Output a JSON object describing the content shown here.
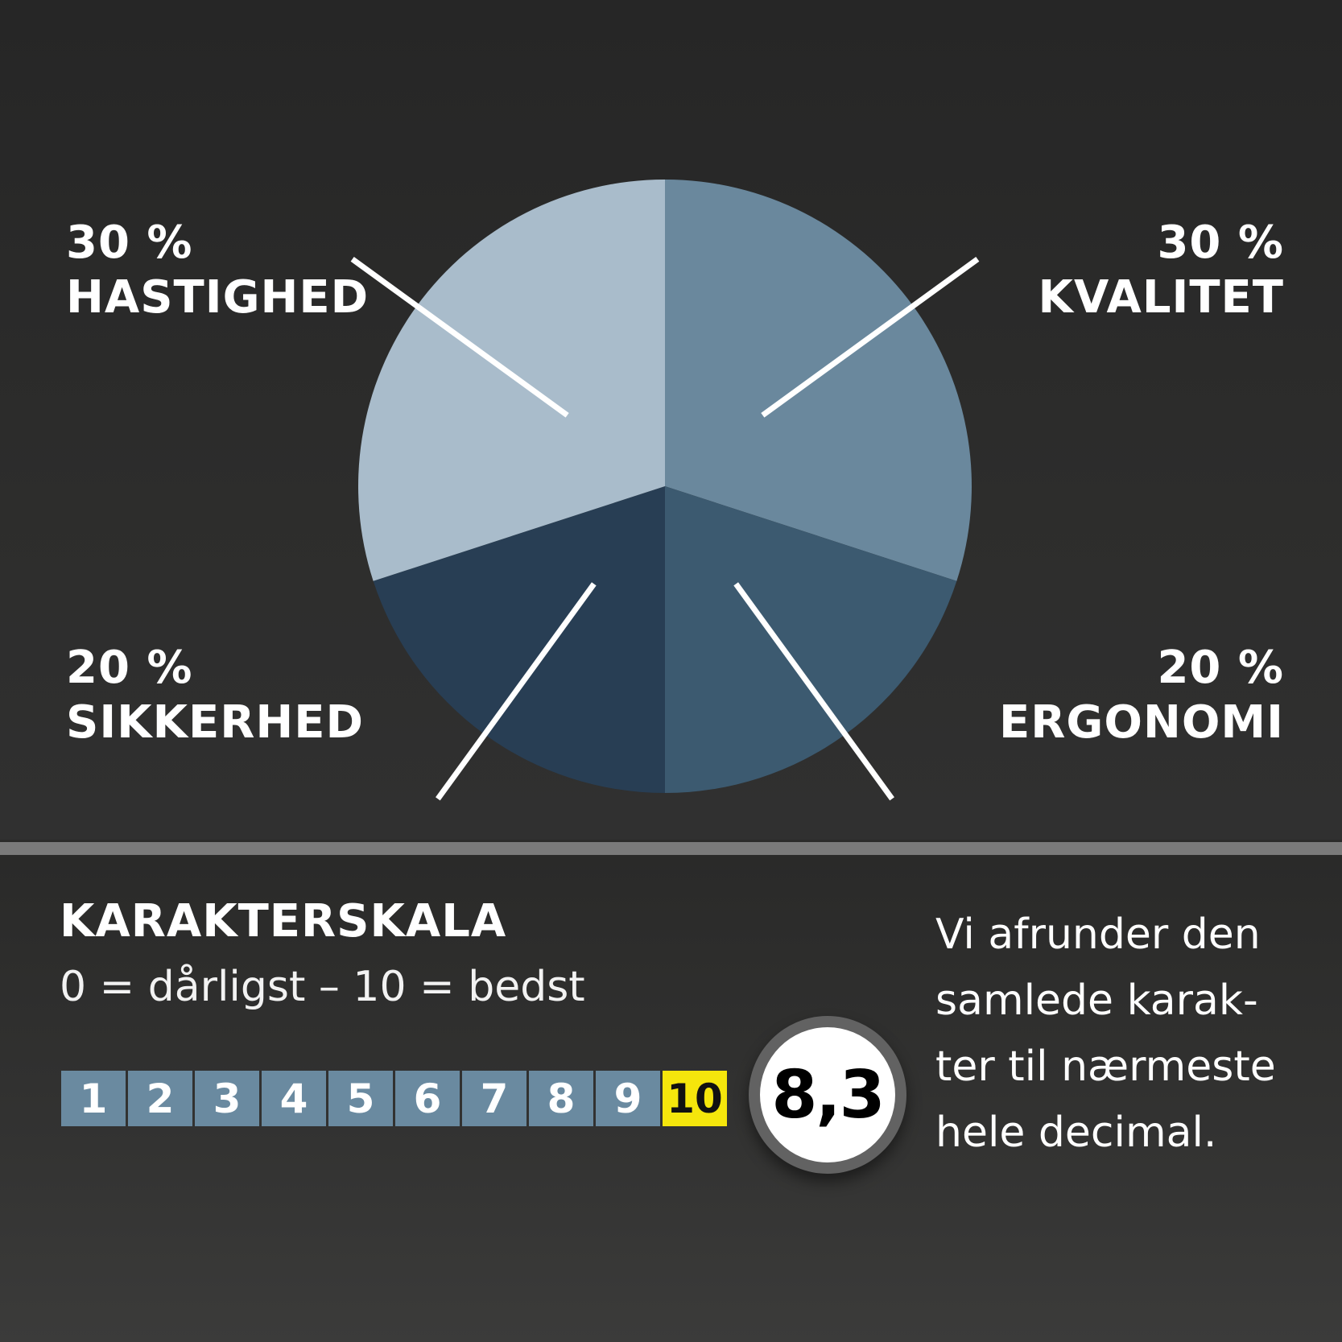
{
  "chart_data": {
    "type": "pie",
    "slices": [
      {
        "label": "30 %",
        "name": "KVALITET",
        "value": 30,
        "color": "#6a889d"
      },
      {
        "label": "20 %",
        "name": "ERGONOMI",
        "value": 20,
        "color": "#3c5a70"
      },
      {
        "label": "20 %",
        "name": "SIKKERHED",
        "value": 20,
        "color": "#283e54"
      },
      {
        "label": "30 %",
        "name": "HASTIGHED",
        "value": 30,
        "color": "#a9bccb"
      }
    ]
  },
  "scale": {
    "title": "KARAKTERSKALA",
    "subtitle": "0 = dårligst – 10 = bedst",
    "grades": [
      "1",
      "2",
      "3",
      "4",
      "5",
      "6",
      "7",
      "8",
      "9",
      "10"
    ],
    "highlight_grade": "10",
    "highlight_color": "#f5e60c",
    "grade_color": "#6a8aa0"
  },
  "score": {
    "value": "8,3"
  },
  "note": {
    "lines": [
      "Vi afrunder den",
      "samlede karak-",
      "ter til nærmeste",
      "hele decimal."
    ]
  }
}
